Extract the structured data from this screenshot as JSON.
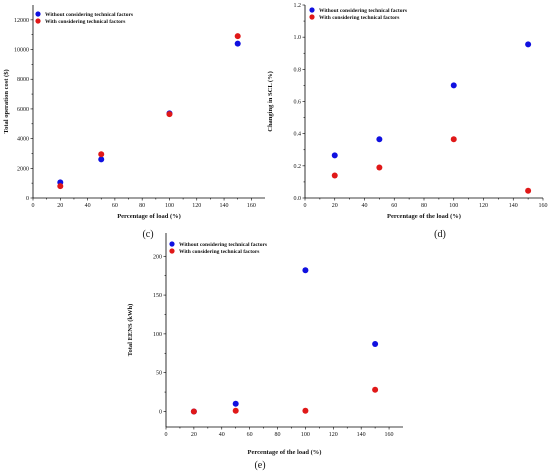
{
  "chart_data": [
    {
      "type": "scatter",
      "panel_label": "(c)",
      "xlabel": "Percentage of load (%)",
      "ylabel": "Total operation cost ($)",
      "xlim": [
        0,
        170
      ],
      "ylim": [
        0,
        13000
      ],
      "xticks": [
        0,
        20,
        40,
        60,
        80,
        100,
        120,
        140,
        160
      ],
      "yticks": [
        0,
        2000,
        4000,
        6000,
        8000,
        10000,
        12000
      ],
      "legend_position": "top-left",
      "series": [
        {
          "name": "Without considering  technical factors",
          "color": "#1010e0",
          "points": [
            {
              "x": 20,
              "y": 1050
            },
            {
              "x": 50,
              "y": 2600
            },
            {
              "x": 100,
              "y": 5700
            },
            {
              "x": 150,
              "y": 10400
            }
          ]
        },
        {
          "name": "With considering  technical factors",
          "color": "#e01818",
          "points": [
            {
              "x": 20,
              "y": 800
            },
            {
              "x": 50,
              "y": 2950
            },
            {
              "x": 100,
              "y": 5650
            },
            {
              "x": 150,
              "y": 10900
            }
          ]
        }
      ]
    },
    {
      "type": "scatter",
      "panel_label": "(d)",
      "xlabel": "Percentage of the load (%)",
      "ylabel": "Changing in SCL (%)",
      "xlim": [
        0,
        160
      ],
      "ylim": [
        0,
        1.2
      ],
      "xticks": [
        0,
        20,
        40,
        60,
        80,
        100,
        120,
        140,
        160
      ],
      "yticks": [
        0.0,
        0.2,
        0.4,
        0.6,
        0.8,
        1.0,
        1.2
      ],
      "ytick_labels": [
        "0.0",
        "0.2",
        "0.4",
        "0.6",
        "0.8",
        "1.0",
        "1.2"
      ],
      "legend_position": "top-left",
      "series": [
        {
          "name": "Without considering  technical factors",
          "color": "#1010e0",
          "points": [
            {
              "x": 20,
              "y": 0.265
            },
            {
              "x": 50,
              "y": 0.365
            },
            {
              "x": 100,
              "y": 0.7
            },
            {
              "x": 150,
              "y": 0.955
            }
          ]
        },
        {
          "name": "With considering  technical factors",
          "color": "#e01818",
          "points": [
            {
              "x": 20,
              "y": 0.14
            },
            {
              "x": 50,
              "y": 0.19
            },
            {
              "x": 100,
              "y": 0.365
            },
            {
              "x": 150,
              "y": 0.045
            }
          ]
        }
      ]
    },
    {
      "type": "scatter",
      "panel_label": "(e)",
      "xlabel": "Percentage of the load (%)",
      "ylabel": "Total EENS (kWh)",
      "xlim": [
        0,
        170
      ],
      "ylim": [
        -20,
        230
      ],
      "xticks": [
        0,
        20,
        40,
        60,
        80,
        100,
        120,
        140,
        160
      ],
      "yticks": [
        0,
        50,
        100,
        150,
        200
      ],
      "legend_position": "top-right",
      "series": [
        {
          "name": "Without considering  technical factors",
          "color": "#1010e0",
          "points": [
            {
              "x": 20,
              "y": 0
            },
            {
              "x": 50,
              "y": 10
            },
            {
              "x": 100,
              "y": 182
            },
            {
              "x": 150,
              "y": 87
            }
          ]
        },
        {
          "name": "With considering  technical factors",
          "color": "#e01818",
          "points": [
            {
              "x": 20,
              "y": 0
            },
            {
              "x": 50,
              "y": 1
            },
            {
              "x": 100,
              "y": 1
            },
            {
              "x": 150,
              "y": 28
            }
          ]
        }
      ]
    }
  ]
}
